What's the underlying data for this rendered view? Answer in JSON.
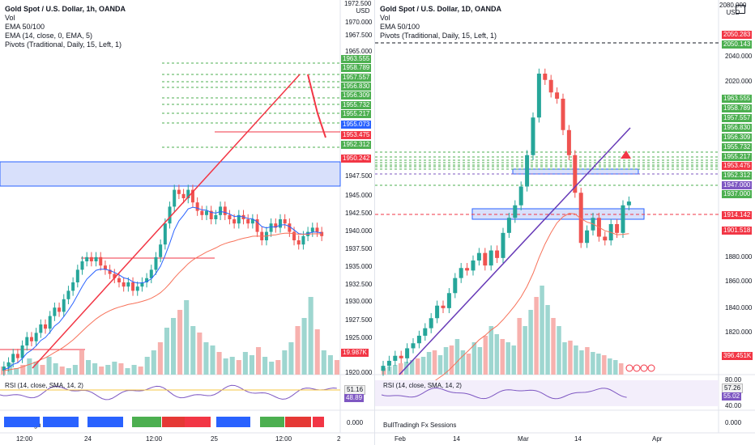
{
  "left": {
    "legend": {
      "title": "Gold Spot / U.S. Dollar, 1h, OANDA",
      "line2": "Vol",
      "line3": "EMA 50/100",
      "line4": "EMA (14, close, 0, EMA, 5)",
      "line5": "Pivots (Traditional, Daily, 15, Left, 1)"
    },
    "axis_top": {
      "value": "1972.500",
      "unit": "USD"
    },
    "price_ticks": [
      "1970.000",
      "1967.500",
      "1965.000",
      "1947.500",
      "1945.000",
      "1942.500",
      "1940.000",
      "1937.500",
      "1935.000",
      "1932.500",
      "1930.000",
      "1927.500",
      "1925.000",
      "1920.000"
    ],
    "tags": [
      {
        "text": "1963.555",
        "color": "#4caf50"
      },
      {
        "text": "1958.789",
        "color": "#4caf50"
      },
      {
        "text": "1957.557",
        "color": "#4caf50"
      },
      {
        "text": "1956.830",
        "color": "#4caf50"
      },
      {
        "text": "1956.309",
        "color": "#4caf50"
      },
      {
        "text": "1955.732",
        "color": "#4caf50"
      },
      {
        "text": "1955.217",
        "color": "#4caf50"
      },
      {
        "text": "1955.073",
        "color": "#2962ff"
      },
      {
        "text": "1953.475",
        "color": "#f23645"
      },
      {
        "text": "1952.312",
        "color": "#4caf50"
      },
      {
        "text": "1950.242",
        "color": "#f23645"
      },
      {
        "text": "19.987K",
        "color": "#f23645"
      }
    ],
    "rsi": {
      "label": "RSI (14, close, SMA, 14, 2)",
      "value1": "51.16",
      "value2": "48.89"
    },
    "sessions": {
      "label": "BullTradingh Fx Sessions",
      "value": "0.000"
    },
    "x_ticks": [
      "12:00",
      "24",
      "12:00",
      "25",
      "12:00",
      "2"
    ]
  },
  "right": {
    "legend": {
      "title": "Gold Spot / U.S. Dollar, 1D, OANDA",
      "line2": "Vol",
      "line3": "EMA 50/100",
      "line4": "Pivots (Traditional, Daily, 15, Left, 1)"
    },
    "axis_top": {
      "value": "2080.000",
      "unit": "USD"
    },
    "price_ticks": [
      "2040.000",
      "2020.000",
      "1880.000",
      "1860.000",
      "1840.000",
      "1820.000"
    ],
    "tags": [
      {
        "text": "2050.283",
        "color": "#f23645"
      },
      {
        "text": "2050.143",
        "color": "#4caf50"
      },
      {
        "text": "1963.555",
        "color": "#4caf50"
      },
      {
        "text": "1958.789",
        "color": "#4caf50"
      },
      {
        "text": "1957.557",
        "color": "#4caf50"
      },
      {
        "text": "1956.830",
        "color": "#4caf50"
      },
      {
        "text": "1956.309",
        "color": "#4caf50"
      },
      {
        "text": "1955.732",
        "color": "#4caf50"
      },
      {
        "text": "1955.217",
        "color": "#4caf50"
      },
      {
        "text": "1953.475",
        "color": "#f23645"
      },
      {
        "text": "1952.312",
        "color": "#4caf50"
      },
      {
        "text": "1947.000",
        "color": "#7e57c2"
      },
      {
        "text": "1937.000",
        "color": "#4caf50"
      },
      {
        "text": "1914.142",
        "color": "#f23645"
      },
      {
        "text": "1901.518",
        "color": "#f23645"
      },
      {
        "text": "396.451K",
        "color": "#f23645"
      }
    ],
    "rsi": {
      "label": "RSI (14, close, SMA, 14, 2)",
      "value1": "57.26",
      "value2": "55.02",
      "tick_top": "80.00",
      "tick_bottom": "40.00"
    },
    "sessions": {
      "label": "BullTradingh Fx Sessions",
      "value": "0.000"
    },
    "x_ticks": [
      "Feb",
      "14",
      "Mar",
      "14",
      "Apr"
    ]
  },
  "colors": {
    "up": "#26a69a",
    "down": "#ef5350",
    "zone": "#d8e0fb",
    "zone_border": "#2962ff",
    "trend_red": "#f23645",
    "trend_purple": "#673ab7"
  }
}
